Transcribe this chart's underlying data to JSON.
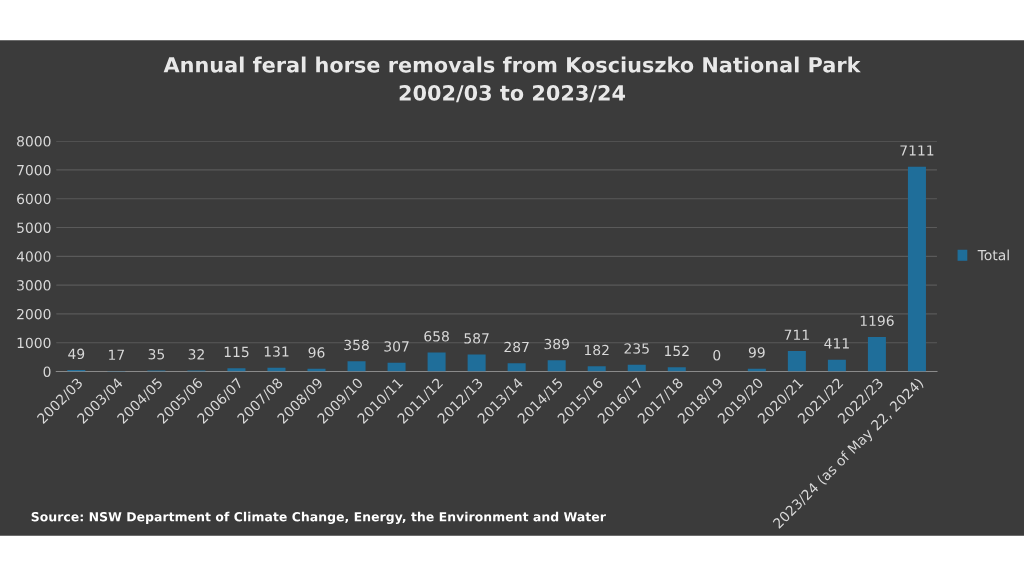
{
  "chart_data": {
    "type": "bar",
    "title": "Annual feral horse removals from Kosciuszko National Park\n2002/03 to 2023/24",
    "categories": [
      "2002/03",
      "2003/04",
      "2004/05",
      "2005/06",
      "2006/07",
      "2007/08",
      "2008/09",
      "2009/10",
      "2010/11",
      "2011/12",
      "2012/13",
      "2013/14",
      "2014/15",
      "2015/16",
      "2016/17",
      "2017/18",
      "2018/19",
      "2019/20",
      "2020/21",
      "2021/22",
      "2022/23",
      "2023/24 (as of May 22, 2024)"
    ],
    "series": [
      {
        "name": "Total",
        "color": "#1f6e9a",
        "values": [
          49,
          17,
          35,
          32,
          115,
          131,
          96,
          358,
          307,
          658,
          587,
          287,
          389,
          182,
          235,
          152,
          0,
          99,
          711,
          411,
          1196,
          7111
        ]
      }
    ],
    "ylim": [
      0,
      8000
    ],
    "yticks": [
      0,
      1000,
      2000,
      3000,
      4000,
      5000,
      6000,
      7000,
      8000
    ],
    "grid": "y",
    "legend": "right",
    "data_labels": true,
    "annotations": [
      "Source: NSW Department of Climate Change, Energy, the Environment and Water"
    ]
  }
}
